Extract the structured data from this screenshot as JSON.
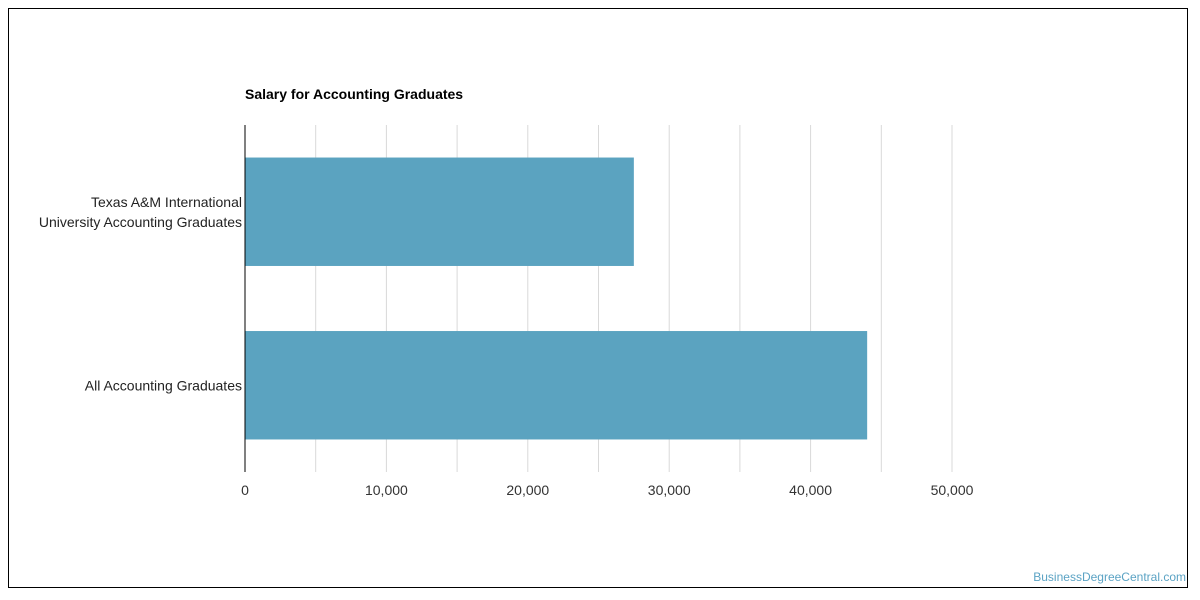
{
  "watermark": "BusinessDegreeCentral.com",
  "chart_data": {
    "type": "bar",
    "orientation": "horizontal",
    "title": "Salary for Accounting Graduates",
    "xlabel": "",
    "ylabel": "",
    "categories": [
      [
        "Texas A&M International",
        "University Accounting Graduates"
      ],
      [
        "All Accounting Graduates"
      ]
    ],
    "values": [
      27500,
      44000
    ],
    "xlim": [
      0,
      50000
    ],
    "ticks": [
      0,
      10000,
      20000,
      30000,
      40000,
      50000
    ],
    "tick_labels": [
      "0",
      "10,000",
      "20,000",
      "30,000",
      "40,000",
      "50,000"
    ],
    "grid": true,
    "bar_color": "#5ba3c0",
    "grid_color": "#d9d9d9",
    "axis_color": "#000000"
  }
}
